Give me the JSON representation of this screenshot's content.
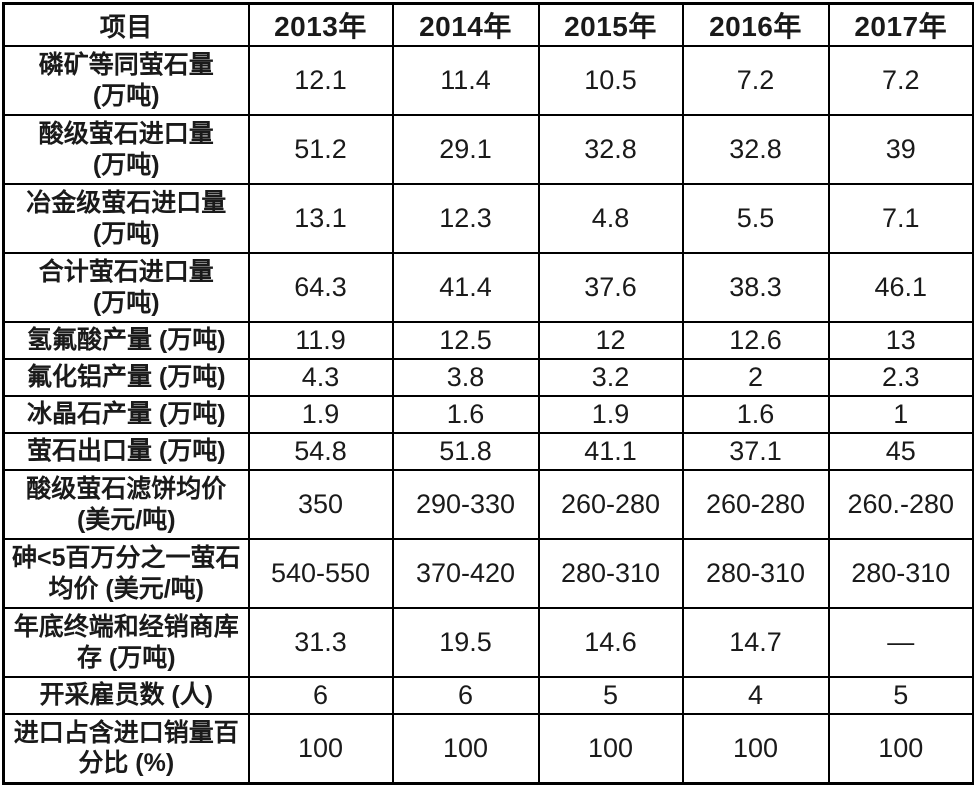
{
  "chart_data": {
    "type": "table",
    "title": "",
    "columns": [
      "项目",
      "2013年",
      "2014年",
      "2015年",
      "2016年",
      "2017年"
    ],
    "rows": [
      {
        "label": "磷矿等同萤石量\n(万吨)",
        "values": [
          "12.1",
          "11.4",
          "10.5",
          "7.2",
          "7.2"
        ]
      },
      {
        "label": "酸级萤石进口量\n(万吨)",
        "values": [
          "51.2",
          "29.1",
          "32.8",
          "32.8",
          "39"
        ]
      },
      {
        "label": "冶金级萤石进口量\n(万吨)",
        "values": [
          "13.1",
          "12.3",
          "4.8",
          "5.5",
          "7.1"
        ]
      },
      {
        "label": "合计萤石进口量\n(万吨)",
        "values": [
          "64.3",
          "41.4",
          "37.6",
          "38.3",
          "46.1"
        ]
      },
      {
        "label": "氢氟酸产量 (万吨)",
        "values": [
          "11.9",
          "12.5",
          "12",
          "12.6",
          "13"
        ]
      },
      {
        "label": "氟化铝产量 (万吨)",
        "values": [
          "4.3",
          "3.8",
          "3.2",
          "2",
          "2.3"
        ]
      },
      {
        "label": "冰晶石产量 (万吨)",
        "values": [
          "1.9",
          "1.6",
          "1.9",
          "1.6",
          "1"
        ]
      },
      {
        "label": "萤石出口量 (万吨)",
        "values": [
          "54.8",
          "51.8",
          "41.1",
          "37.1",
          "45"
        ]
      },
      {
        "label": "酸级萤石滤饼均价\n(美元/吨)",
        "values": [
          "350",
          "290-330",
          "260-280",
          "260-280",
          "260.-280"
        ]
      },
      {
        "label": "砷<5百万分之一萤石\n均价 (美元/吨)",
        "values": [
          "540-550",
          "370-420",
          "280-310",
          "280-310",
          "280-310"
        ]
      },
      {
        "label": "年底终端和经销商库\n存 (万吨)",
        "values": [
          "31.3",
          "19.5",
          "14.6",
          "14.7",
          "—"
        ]
      },
      {
        "label": "开采雇员数 (人)",
        "values": [
          "6",
          "6",
          "5",
          "4",
          "5"
        ]
      },
      {
        "label": "进口占含进口销量百\n分比 (%)",
        "values": [
          "100",
          "100",
          "100",
          "100",
          "100"
        ]
      }
    ],
    "colors": {
      "border": "#000000",
      "text": "#1a1a1a",
      "background": "#ffffff"
    }
  }
}
